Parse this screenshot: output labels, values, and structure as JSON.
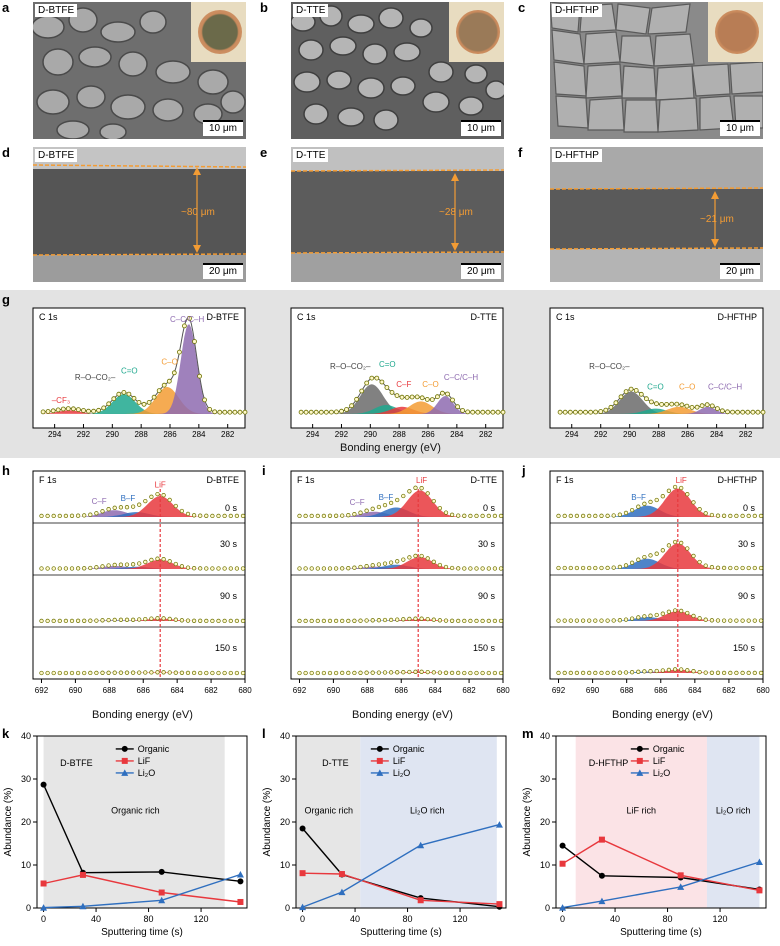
{
  "panels": {
    "a": {
      "label": "a",
      "tag": "D-BTFE",
      "scale": "10 μm"
    },
    "b": {
      "label": "b",
      "tag": "D-TTE",
      "scale": "10 μm"
    },
    "c": {
      "label": "c",
      "tag": "D-HFTHP",
      "scale": "10 μm"
    },
    "d": {
      "label": "d",
      "tag": "D-BTFE",
      "scale": "20 μm",
      "thickness": "~80 μm"
    },
    "e": {
      "label": "e",
      "tag": "D-TTE",
      "scale": "20 μm",
      "thickness": "~28 μm"
    },
    "f": {
      "label": "f",
      "tag": "D-HFTHP",
      "scale": "20 μm",
      "thickness": "~21 μm"
    }
  },
  "colors": {
    "grey_bg": "#e3e3e3",
    "organic": "#000000",
    "lif": "#e8383d",
    "li2o": "#2f6fbf",
    "purple": "#8e6bb0",
    "orange": "#f39c34",
    "teal": "#1fa88e",
    "darkgrey": "#6b6b6b",
    "fit": "#c8d400"
  },
  "xps_c1s": {
    "label": "g",
    "xlabel": "Bonding energy (eV)",
    "ticks": [
      "294",
      "292",
      "290",
      "288",
      "286",
      "284",
      "282"
    ],
    "subplots": [
      {
        "title": "C 1s",
        "sample": "D-BTFE",
        "peaks": [
          "–CF₃",
          "R–O–CO₂–",
          "C=O",
          "C–O",
          "C–C/C–H"
        ]
      },
      {
        "title": "C 1s",
        "sample": "D-TTE",
        "peaks": [
          "R–O–CO₂–",
          "C=O",
          "C–F",
          "C–O",
          "C–C/C–H"
        ]
      },
      {
        "title": "C 1s",
        "sample": "D-HFTHP",
        "peaks": [
          "R–O–CO₂–",
          "C=O",
          "C–O",
          "C–C/C–H"
        ]
      }
    ]
  },
  "xps_f1s": {
    "labels": [
      "h",
      "i",
      "j"
    ],
    "xlabel": "Bonding energy (eV)",
    "ticks": [
      "692",
      "690",
      "688",
      "686",
      "684",
      "682",
      "680"
    ],
    "times": [
      "0 s",
      "30 s",
      "90 s",
      "150 s"
    ],
    "subplots": [
      {
        "title": "F 1s",
        "sample": "D-BTFE",
        "peaks": [
          "C–F",
          "B–F",
          "LiF"
        ]
      },
      {
        "title": "F 1s",
        "sample": "D-TTE",
        "peaks": [
          "C–F",
          "B–F",
          "LiF"
        ]
      },
      {
        "title": "F 1s",
        "sample": "D-HFTHP",
        "peaks": [
          "B–F",
          "LiF"
        ]
      }
    ]
  },
  "chart_data": [
    {
      "id": "k",
      "type": "line",
      "title": "D-BTFE",
      "region_label": "Organic rich",
      "xlabel": "Sputtering time (s)",
      "ylabel": "Abundance (%)",
      "xlim": [
        -5,
        155
      ],
      "ylim": [
        0,
        40
      ],
      "xticks": [
        0,
        40,
        80,
        120
      ],
      "yticks": [
        0,
        10,
        20,
        30,
        40
      ],
      "x": [
        0,
        30,
        90,
        150
      ],
      "series": [
        {
          "name": "Organic",
          "values": [
            28.7,
            8.2,
            8.4,
            6.2
          ]
        },
        {
          "name": "LiF",
          "values": [
            5.7,
            7.7,
            3.6,
            1.4
          ]
        },
        {
          "name": "Li₂O",
          "values": [
            0.1,
            0.4,
            1.8,
            7.8
          ]
        }
      ]
    },
    {
      "id": "l",
      "type": "line",
      "title": "D-TTE",
      "region_labels": [
        "Organic rich",
        "Li₂O rich"
      ],
      "xlabel": "Sputtering time (s)",
      "ylabel": "Abundance (%)",
      "xlim": [
        -5,
        155
      ],
      "ylim": [
        0,
        40
      ],
      "xticks": [
        0,
        40,
        80,
        120
      ],
      "yticks": [
        0,
        10,
        20,
        30,
        40
      ],
      "x": [
        0,
        30,
        90,
        150
      ],
      "series": [
        {
          "name": "Organic",
          "values": [
            18.5,
            7.8,
            2.3,
            0.3
          ]
        },
        {
          "name": "LiF",
          "values": [
            8.1,
            7.9,
            1.8,
            0.9
          ]
        },
        {
          "name": "Li₂O",
          "values": [
            0.2,
            3.7,
            14.6,
            19.4
          ]
        }
      ]
    },
    {
      "id": "m",
      "type": "line",
      "title": "D-HFTHP",
      "region_labels": [
        "LiF rich",
        "Li₂O rich"
      ],
      "xlabel": "Sputtering time (s)",
      "ylabel": "Abundance (%)",
      "xlim": [
        -5,
        155
      ],
      "ylim": [
        0,
        40
      ],
      "xticks": [
        0,
        40,
        80,
        120
      ],
      "yticks": [
        0,
        10,
        20,
        30,
        40
      ],
      "x": [
        0,
        30,
        90,
        150
      ],
      "series": [
        {
          "name": "Organic",
          "values": [
            14.5,
            7.5,
            7.1,
            4.3
          ]
        },
        {
          "name": "LiF",
          "values": [
            10.3,
            15.9,
            7.6,
            4.1
          ]
        },
        {
          "name": "Li₂O",
          "values": [
            0.1,
            1.6,
            4.9,
            10.7
          ]
        }
      ]
    }
  ]
}
